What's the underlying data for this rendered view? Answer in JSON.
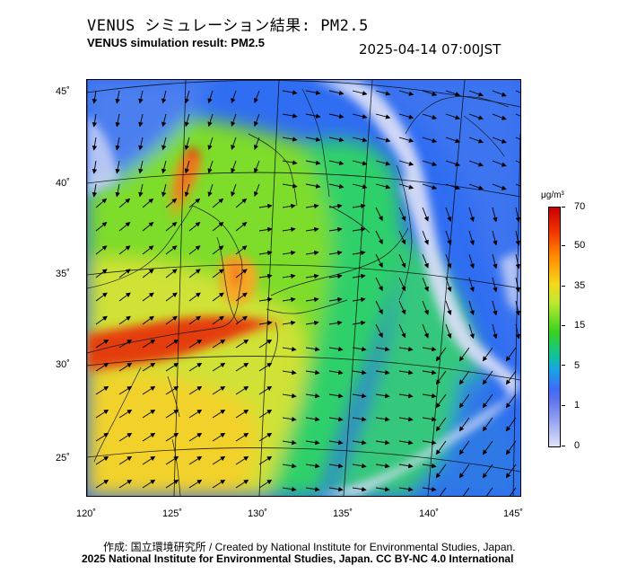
{
  "header": {
    "title_jp": "VENUS シミュレーション結果: PM2.5",
    "title_en": "VENUS simulation result: PM2.5",
    "timestamp": "2025-04-14 07:00JST"
  },
  "map": {
    "lat_labels": [
      "45˚",
      "40˚",
      "35˚",
      "30˚",
      "25˚"
    ],
    "lon_labels": [
      "120˚",
      "125˚",
      "130˚",
      "135˚",
      "140˚",
      "145˚"
    ]
  },
  "colorbar": {
    "unit": "μg/m³",
    "labels": [
      "70",
      "50",
      "35",
      "15",
      "5",
      "1",
      "0"
    ],
    "colors": {
      "high": "#c80000",
      "mid": "#f4d81a",
      "low_mid": "#38d21f",
      "low": "#3e6cf5",
      "zero": "#dfe3f8"
    }
  },
  "footer": {
    "credit": "作成: 国立環境研究所 / Created by National Institute for Environmental Studies, Japan.",
    "copyright": "2025 National Institute for Environmental Studies, Japan. CC BY-NC 4.0 International"
  }
}
